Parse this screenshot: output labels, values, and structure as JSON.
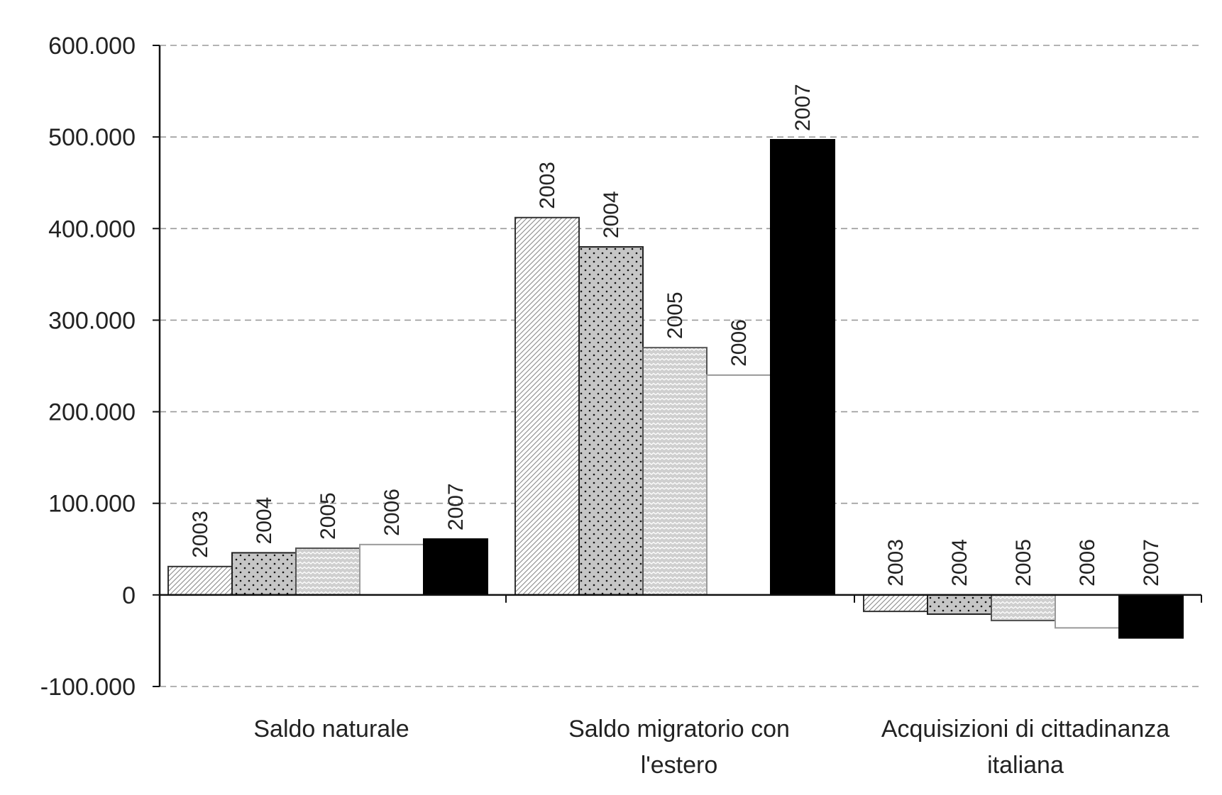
{
  "chart_data": {
    "type": "bar",
    "title": "",
    "xlabel": "",
    "ylabel": "",
    "categories": [
      "Saldo naturale",
      "Saldo migratorio con l'estero",
      "Acquisizioni di cittadinanza italiana"
    ],
    "category_lines": [
      [
        "Saldo naturale"
      ],
      [
        "Saldo migratorio con",
        "l'estero"
      ],
      [
        "Acquisizioni di cittadinanza",
        "italiana"
      ]
    ],
    "series": [
      {
        "name": "2003",
        "values": [
          31000,
          412000,
          -18000
        ]
      },
      {
        "name": "2004",
        "values": [
          46000,
          380000,
          -21000
        ]
      },
      {
        "name": "2005",
        "values": [
          51000,
          270000,
          -28000
        ]
      },
      {
        "name": "2006",
        "values": [
          55000,
          240000,
          -36000
        ]
      },
      {
        "name": "2007",
        "values": [
          61000,
          497000,
          -47000
        ]
      }
    ],
    "ylim": [
      -100000,
      600000
    ],
    "yticks": [
      -100000,
      0,
      100000,
      200000,
      300000,
      400000,
      500000,
      600000
    ],
    "ytick_labels": [
      "-100.000",
      "0",
      "100.000",
      "200.000",
      "300.000",
      "400.000",
      "500.000",
      "600.000"
    ],
    "grid": true,
    "grid_style": "dashed",
    "legend": "none",
    "data_labels": "series-name-vertical",
    "series_fills": [
      "diagonal-hatch",
      "dotted-grey",
      "wave-grey",
      "white",
      "black"
    ]
  }
}
